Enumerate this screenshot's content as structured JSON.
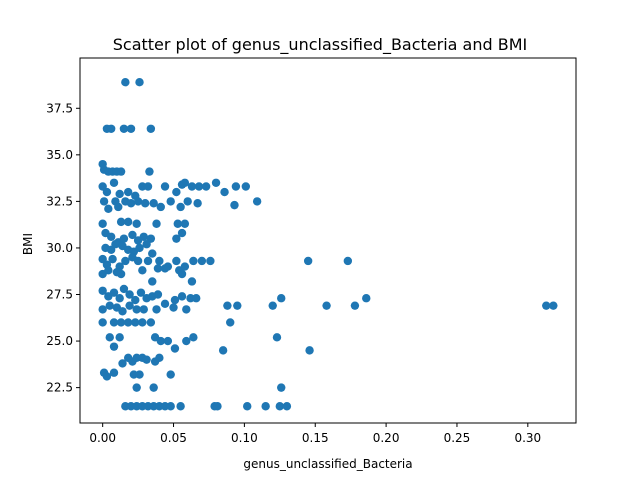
{
  "chart_data": {
    "type": "scatter",
    "title": "Scatter plot of genus_unclassified_Bacteria and BMI",
    "xlabel": "genus_unclassified_Bacteria",
    "ylabel": "BMI",
    "xlim": [
      -0.016,
      0.334
    ],
    "ylim": [
      20.6,
      40.2
    ],
    "xticks": [
      0.0,
      0.05,
      0.1,
      0.15,
      0.2,
      0.25,
      0.3
    ],
    "xtick_labels": [
      "0.00",
      "0.05",
      "0.10",
      "0.15",
      "0.20",
      "0.25",
      "0.30"
    ],
    "yticks": [
      22.5,
      25.0,
      27.5,
      30.0,
      32.5,
      35.0,
      37.5
    ],
    "ytick_labels": [
      "22.5",
      "25.0",
      "27.5",
      "30.0",
      "32.5",
      "35.0",
      "37.5"
    ],
    "grid": false,
    "marker_color": "#1f77b4",
    "points": [
      [
        0.016,
        38.9
      ],
      [
        0.026,
        38.9
      ],
      [
        0.003,
        36.4
      ],
      [
        0.006,
        36.4
      ],
      [
        0.015,
        36.4
      ],
      [
        0.02,
        36.4
      ],
      [
        0.034,
        36.4
      ],
      [
        0.0,
        34.5
      ],
      [
        0.001,
        34.2
      ],
      [
        0.004,
        34.1
      ],
      [
        0.007,
        34.1
      ],
      [
        0.01,
        34.1
      ],
      [
        0.013,
        34.1
      ],
      [
        0.033,
        34.1
      ],
      [
        0.0,
        33.3
      ],
      [
        0.003,
        33.0
      ],
      [
        0.008,
        33.5
      ],
      [
        0.012,
        32.9
      ],
      [
        0.018,
        33.0
      ],
      [
        0.023,
        32.8
      ],
      [
        0.028,
        33.3
      ],
      [
        0.032,
        33.3
      ],
      [
        0.044,
        33.3
      ],
      [
        0.052,
        33.0
      ],
      [
        0.056,
        33.4
      ],
      [
        0.058,
        33.5
      ],
      [
        0.063,
        33.3
      ],
      [
        0.068,
        33.3
      ],
      [
        0.073,
        33.3
      ],
      [
        0.08,
        33.5
      ],
      [
        0.086,
        33.0
      ],
      [
        0.094,
        33.3
      ],
      [
        0.101,
        33.3
      ],
      [
        0.001,
        32.5
      ],
      [
        0.004,
        32.1
      ],
      [
        0.009,
        32.5
      ],
      [
        0.011,
        32.2
      ],
      [
        0.016,
        32.5
      ],
      [
        0.02,
        32.4
      ],
      [
        0.025,
        32.5
      ],
      [
        0.03,
        32.4
      ],
      [
        0.036,
        32.4
      ],
      [
        0.041,
        32.2
      ],
      [
        0.048,
        32.5
      ],
      [
        0.055,
        32.2
      ],
      [
        0.06,
        32.5
      ],
      [
        0.067,
        32.4
      ],
      [
        0.093,
        32.3
      ],
      [
        0.109,
        32.5
      ],
      [
        0.0,
        31.3
      ],
      [
        0.013,
        31.4
      ],
      [
        0.018,
        31.4
      ],
      [
        0.024,
        31.3
      ],
      [
        0.038,
        31.3
      ],
      [
        0.053,
        31.3
      ],
      [
        0.058,
        31.3
      ],
      [
        0.002,
        30.8
      ],
      [
        0.006,
        30.6
      ],
      [
        0.011,
        30.3
      ],
      [
        0.015,
        30.5
      ],
      [
        0.021,
        30.7
      ],
      [
        0.025,
        30.4
      ],
      [
        0.029,
        30.6
      ],
      [
        0.034,
        30.5
      ],
      [
        0.052,
        30.5
      ],
      [
        0.056,
        30.8
      ],
      [
        0.002,
        30.0
      ],
      [
        0.006,
        29.9
      ],
      [
        0.009,
        30.2
      ],
      [
        0.014,
        30.1
      ],
      [
        0.018,
        29.9
      ],
      [
        0.022,
        29.8
      ],
      [
        0.026,
        30.0
      ],
      [
        0.031,
        30.2
      ],
      [
        0.035,
        29.7
      ],
      [
        0.0,
        29.4
      ],
      [
        0.003,
        29.1
      ],
      [
        0.007,
        29.4
      ],
      [
        0.012,
        29.0
      ],
      [
        0.016,
        29.3
      ],
      [
        0.021,
        29.5
      ],
      [
        0.025,
        29.3
      ],
      [
        0.032,
        29.3
      ],
      [
        0.04,
        29.3
      ],
      [
        0.046,
        29.0
      ],
      [
        0.052,
        29.3
      ],
      [
        0.058,
        29.0
      ],
      [
        0.064,
        29.3
      ],
      [
        0.07,
        29.3
      ],
      [
        0.076,
        29.3
      ],
      [
        0.145,
        29.3
      ],
      [
        0.173,
        29.3
      ],
      [
        0.0,
        28.6
      ],
      [
        0.004,
        28.8
      ],
      [
        0.01,
        28.7
      ],
      [
        0.013,
        28.6
      ],
      [
        0.028,
        28.8
      ],
      [
        0.039,
        28.9
      ],
      [
        0.044,
        28.9
      ],
      [
        0.054,
        28.8
      ],
      [
        0.056,
        28.6
      ],
      [
        0.063,
        28.2
      ],
      [
        0.035,
        28.2
      ],
      [
        0.0,
        27.7
      ],
      [
        0.004,
        27.4
      ],
      [
        0.008,
        27.6
      ],
      [
        0.012,
        27.3
      ],
      [
        0.015,
        27.8
      ],
      [
        0.019,
        27.5
      ],
      [
        0.023,
        27.2
      ],
      [
        0.027,
        27.6
      ],
      [
        0.031,
        27.3
      ],
      [
        0.035,
        27.4
      ],
      [
        0.039,
        27.5
      ],
      [
        0.044,
        27.0
      ],
      [
        0.051,
        27.2
      ],
      [
        0.056,
        27.4
      ],
      [
        0.062,
        27.3
      ],
      [
        0.066,
        27.3
      ],
      [
        0.126,
        27.3
      ],
      [
        0.186,
        27.3
      ],
      [
        0.0,
        26.7
      ],
      [
        0.005,
        26.9
      ],
      [
        0.01,
        26.8
      ],
      [
        0.014,
        26.6
      ],
      [
        0.019,
        26.9
      ],
      [
        0.024,
        26.7
      ],
      [
        0.029,
        26.7
      ],
      [
        0.038,
        26.7
      ],
      [
        0.05,
        26.8
      ],
      [
        0.059,
        26.7
      ],
      [
        0.088,
        26.9
      ],
      [
        0.095,
        26.9
      ],
      [
        0.12,
        26.9
      ],
      [
        0.158,
        26.9
      ],
      [
        0.178,
        26.9
      ],
      [
        0.313,
        26.9
      ],
      [
        0.318,
        26.9
      ],
      [
        0.0,
        26.0
      ],
      [
        0.008,
        26.0
      ],
      [
        0.013,
        26.0
      ],
      [
        0.018,
        26.0
      ],
      [
        0.023,
        26.0
      ],
      [
        0.028,
        26.0
      ],
      [
        0.034,
        26.0
      ],
      [
        0.09,
        26.0
      ],
      [
        0.005,
        25.2
      ],
      [
        0.012,
        25.2
      ],
      [
        0.037,
        25.2
      ],
      [
        0.041,
        25.0
      ],
      [
        0.046,
        25.0
      ],
      [
        0.051,
        24.6
      ],
      [
        0.059,
        25.0
      ],
      [
        0.064,
        25.2
      ],
      [
        0.085,
        24.5
      ],
      [
        0.123,
        25.2
      ],
      [
        0.146,
        24.5
      ],
      [
        0.008,
        24.7
      ],
      [
        0.014,
        23.8
      ],
      [
        0.018,
        24.1
      ],
      [
        0.021,
        23.9
      ],
      [
        0.024,
        24.1
      ],
      [
        0.028,
        24.1
      ],
      [
        0.031,
        24.0
      ],
      [
        0.037,
        23.9
      ],
      [
        0.04,
        24.1
      ],
      [
        0.001,
        23.3
      ],
      [
        0.003,
        23.1
      ],
      [
        0.008,
        23.3
      ],
      [
        0.022,
        23.2
      ],
      [
        0.026,
        23.2
      ],
      [
        0.048,
        23.2
      ],
      [
        0.024,
        22.5
      ],
      [
        0.036,
        22.5
      ],
      [
        0.126,
        22.5
      ],
      [
        0.016,
        21.5
      ],
      [
        0.02,
        21.5
      ],
      [
        0.024,
        21.5
      ],
      [
        0.028,
        21.5
      ],
      [
        0.032,
        21.5
      ],
      [
        0.036,
        21.5
      ],
      [
        0.04,
        21.5
      ],
      [
        0.044,
        21.5
      ],
      [
        0.048,
        21.5
      ],
      [
        0.055,
        21.5
      ],
      [
        0.079,
        21.5
      ],
      [
        0.081,
        21.5
      ],
      [
        0.102,
        21.5
      ],
      [
        0.115,
        21.5
      ],
      [
        0.125,
        21.5
      ],
      [
        0.13,
        21.5
      ]
    ]
  }
}
